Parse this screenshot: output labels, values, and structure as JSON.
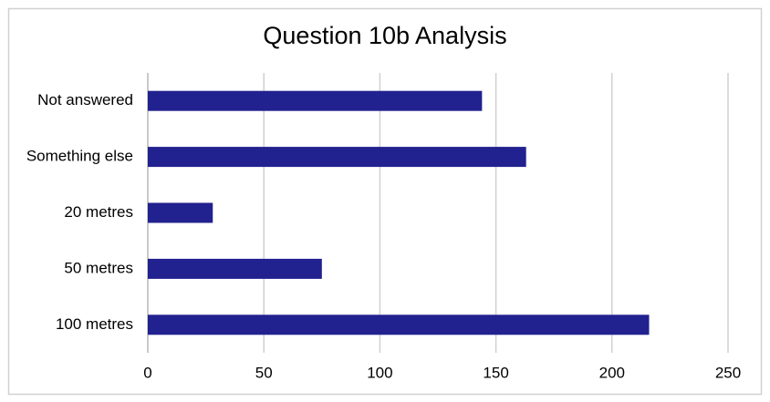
{
  "chart_data": {
    "type": "bar",
    "orientation": "horizontal",
    "title": "Question 10b Analysis",
    "categories": [
      "Not answered",
      "Something else",
      "20 metres",
      "50 metres",
      "100 metres"
    ],
    "values": [
      144,
      163,
      28,
      75,
      216
    ],
    "color": "#21218f",
    "xlim": [
      0,
      250
    ],
    "xticks": [
      0,
      50,
      100,
      150,
      200,
      250
    ],
    "grid": true
  }
}
